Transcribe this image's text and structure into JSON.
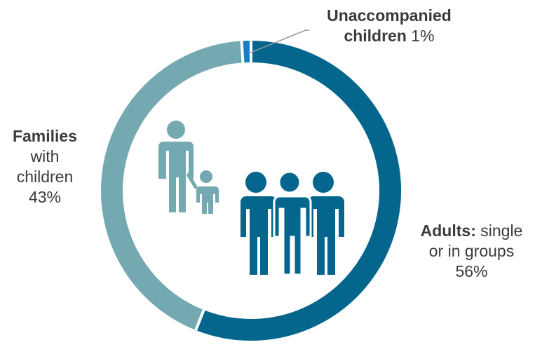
{
  "colors": {
    "adults": "#05668d",
    "families": "#74a9b1",
    "unaccompanied": "#1a7ec2",
    "background": "#ffffff",
    "text": "#3b3b3b",
    "leader_line": "#9a9a9a"
  },
  "icons": {
    "families": "parent-and-child-icon",
    "adults": "group-of-adults-icon"
  },
  "chart_data": {
    "type": "pie",
    "variant": "donut",
    "slices": [
      {
        "key": "adults",
        "value": 56,
        "label_bold": "Adults:",
        "label_rest_1": "single",
        "label_rest_2": "or in groups",
        "pct": "56%"
      },
      {
        "key": "families",
        "value": 43,
        "label_bold": "Families",
        "label_rest_1": "with",
        "label_rest_2": "children",
        "pct": "43%"
      },
      {
        "key": "unaccompanied",
        "value": 1,
        "label_bold_1": "Unaccompanied",
        "label_bold_2": "children",
        "pct": "1%"
      }
    ]
  }
}
